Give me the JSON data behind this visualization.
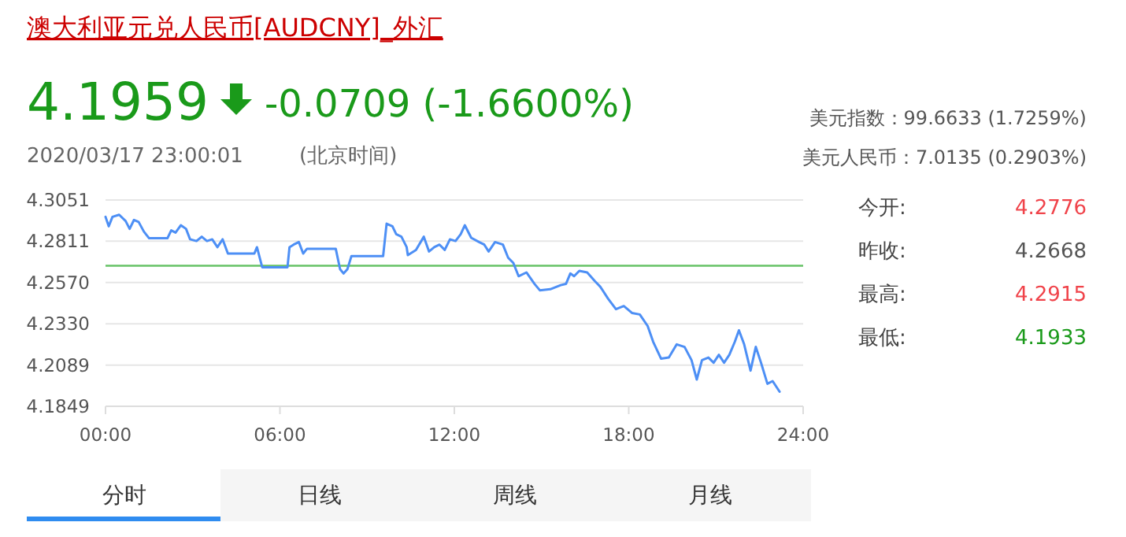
{
  "chart_data": [
    {
      "type": "line",
      "title": "澳大利亚元兑人民币[AUDCNY]_外汇",
      "annotations": [
        "4.1959",
        "-0.0709 (-1.6600%)",
        "2020/03/17 23:00:01",
        "(北京时间)",
        "美元指数：99.6633 (1.7259%)",
        "美元人民币：7.0135 (0.2903%)",
        "分时",
        "日线",
        "周线",
        "月线"
      ],
      "xlim": [
        0,
        24
      ],
      "xticks": [
        {
          "value": 0,
          "label": "00:00"
        },
        {
          "value": 6,
          "label": "06:00"
        },
        {
          "value": 12,
          "label": "12:00"
        },
        {
          "value": 18,
          "label": "18:00"
        },
        {
          "value": 24,
          "label": "24:00"
        }
      ],
      "ylim": [
        4.1849,
        4.3051
      ],
      "yticks": [
        4.1849,
        4.2089,
        {
          "value": 4.233,
          "label": "4.2330"
        },
        {
          "value": 4.257,
          "label": "4.2570"
        },
        4.2811,
        4.3051
      ],
      "grid": "y",
      "marker": "none",
      "line_style": "solid",
      "ref_lines": [
        {
          "axis": "y",
          "value": 4.2668,
          "label": null,
          "color": "#66c266"
        }
      ],
      "series": [
        {
          "color": "#4d8ff5",
          "x": [
            0,
            0.11,
            0.24,
            0.47,
            0.69,
            0.83,
            0.98,
            1.14,
            1.32,
            1.5,
            2.13,
            2.26,
            2.41,
            2.59,
            2.77,
            2.91,
            3.13,
            3.31,
            3.49,
            3.67,
            3.85,
            4.03,
            4.21,
            5.12,
            5.21,
            5.39,
            6.26,
            6.33,
            6.47,
            6.65,
            6.8,
            6.93,
            7.92,
            8.07,
            8.19,
            8.32,
            8.46,
            9.55,
            9.67,
            9.87,
            10.0,
            10.18,
            10.36,
            10.4,
            10.68,
            10.95,
            11.13,
            11.31,
            11.49,
            11.67,
            11.85,
            12.04,
            12.22,
            12.36,
            12.58,
            12.85,
            13.03,
            13.18,
            13.4,
            13.67,
            13.85,
            14.03,
            14.21,
            14.48,
            14.76,
            14.94,
            15.3,
            15.66,
            15.84,
            15.99,
            16.12,
            16.3,
            16.57,
            16.84,
            17.02,
            17.29,
            17.56,
            17.83,
            18.11,
            18.38,
            18.65,
            18.84,
            19.11,
            19.38,
            19.65,
            19.92,
            20.16,
            20.34,
            20.52,
            20.74,
            20.92,
            21.1,
            21.28,
            21.46,
            21.65,
            21.79,
            21.97,
            22.19,
            22.37,
            22.55,
            22.77,
            22.95,
            23.19
          ],
          "values": [
            4.2953,
            4.2898,
            4.2953,
            4.2965,
            4.2929,
            4.2883,
            4.2935,
            4.2923,
            4.2867,
            4.2828,
            4.2828,
            4.2874,
            4.2861,
            4.2904,
            4.2883,
            4.2822,
            4.2812,
            4.2837,
            4.2812,
            4.2822,
            4.2776,
            4.2822,
            4.2739,
            4.2739,
            4.2776,
            4.2659,
            4.2659,
            4.2776,
            4.2791,
            4.2806,
            4.2739,
            4.2767,
            4.2767,
            4.2647,
            4.2623,
            4.2647,
            4.2724,
            4.2724,
            4.2913,
            4.2898,
            4.2852,
            4.2837,
            4.2776,
            4.273,
            4.276,
            4.2837,
            4.2751,
            4.2776,
            4.2791,
            4.276,
            4.2822,
            4.2812,
            4.2852,
            4.2904,
            4.2831,
            4.2806,
            4.2791,
            4.2751,
            4.2806,
            4.2791,
            4.2715,
            4.2684,
            4.2607,
            4.2629,
            4.2562,
            4.2525,
            4.2531,
            4.2555,
            4.2562,
            4.2623,
            4.2607,
            4.2638,
            4.2629,
            4.2577,
            4.2546,
            4.2476,
            4.2415,
            4.2433,
            4.2393,
            4.2384,
            4.2317,
            4.2225,
            4.2127,
            4.2133,
            4.221,
            4.2195,
            4.2118,
            4.2005,
            4.2118,
            4.2133,
            4.2103,
            4.2149,
            4.2103,
            4.2149,
            4.2225,
            4.2292,
            4.221,
            4.2057,
            4.2195,
            4.2103,
            4.198,
            4.1996,
            4.1934
          ]
        }
      ]
    },
    {
      "type": "other",
      "annotations": [
        "今开:",
        "4.2776",
        "昨收:",
        "4.2668",
        "最高:",
        "4.2915",
        "最低:",
        "4.1933"
      ]
    }
  ]
}
